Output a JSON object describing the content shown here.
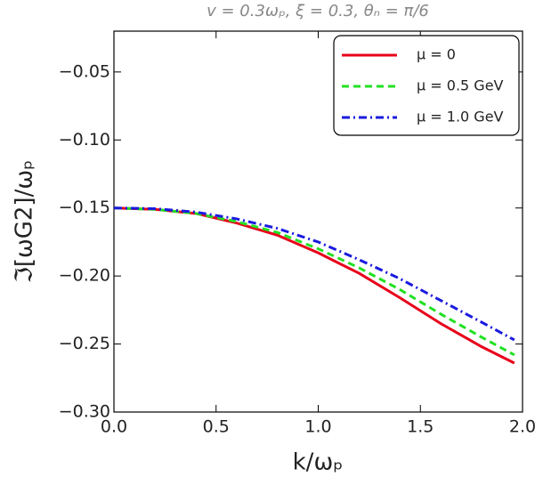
{
  "chart_data": {
    "type": "line",
    "title": "v = 0.3ωₚ, ξ = 0.3, θₙ = π/6",
    "x_label": "k/ωₚ",
    "y_label": "ℑ[ωG2]/ωₚ",
    "x": [
      0,
      0.2,
      0.4,
      0.6,
      0.8,
      1.0,
      1.2,
      1.4,
      1.6,
      1.8,
      1.96
    ],
    "series": [
      {
        "name": "μ = 0",
        "color": "#e8001a",
        "dash": "solid",
        "values": [
          -0.15,
          -0.151,
          -0.154,
          -0.161,
          -0.17,
          -0.183,
          -0.198,
          -0.216,
          -0.235,
          -0.252,
          -0.264
        ]
      },
      {
        "name": "μ = 0.5 GeV",
        "color": "#22e022",
        "dash": "dashed",
        "values": [
          -0.15,
          -0.151,
          -0.154,
          -0.16,
          -0.168,
          -0.18,
          -0.194,
          -0.21,
          -0.228,
          -0.245,
          -0.258
        ]
      },
      {
        "name": "μ = 1.0 GeV",
        "color": "#1a1ae0",
        "dash": "dashdot",
        "values": [
          -0.15,
          -0.1505,
          -0.153,
          -0.158,
          -0.165,
          -0.175,
          -0.188,
          -0.202,
          -0.218,
          -0.234,
          -0.247
        ]
      }
    ],
    "xlim": [
      0,
      2
    ],
    "ylim": [
      -0.3,
      -0.02
    ],
    "xticks": [
      {
        "value": 0,
        "label": "0.0"
      },
      {
        "value": 0.5,
        "label": "0.5"
      },
      {
        "value": 1,
        "label": "1.0"
      },
      {
        "value": 1.5,
        "label": "1.5"
      },
      {
        "value": 2,
        "label": "2.0"
      }
    ],
    "yticks": [
      {
        "value": -0.3,
        "label": "−0.30"
      },
      {
        "value": -0.25,
        "label": "−0.25"
      },
      {
        "value": -0.2,
        "label": "−0.20"
      },
      {
        "value": -0.15,
        "label": "−0.15"
      },
      {
        "value": -0.1,
        "label": "−0.10"
      },
      {
        "value": -0.05,
        "label": "−0.05"
      }
    ],
    "legend": "upper right"
  }
}
